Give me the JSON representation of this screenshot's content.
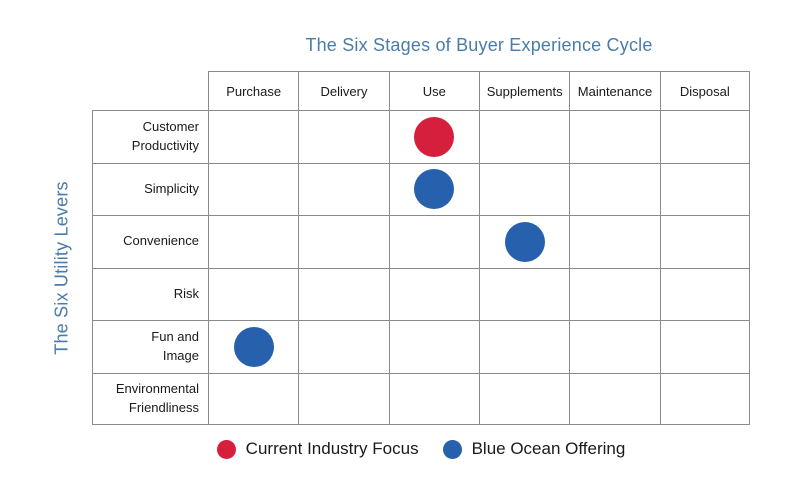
{
  "title": "The Six Stages of Buyer Experience Cycle",
  "y_axis_label": "The Six Utility Levers",
  "colors": {
    "axis_blue": "#4a7ca9",
    "current_industry": "#d51f3c",
    "blue_ocean": "#2760ad",
    "grid_line": "#8a8a8a",
    "text": "#1a1a1a"
  },
  "matrix": {
    "columns": [
      "Purchase",
      "Delivery",
      "Use",
      "Supplements",
      "Maintenance",
      "Disposal"
    ],
    "rows": [
      "Customer\nProductivity",
      "Simplicity",
      "Convenience",
      "Risk",
      "Fun and\nImage",
      "Environmental\nFriendliness"
    ],
    "marks": [
      {
        "row_index": 0,
        "col_index": 2,
        "row": "Customer Productivity",
        "column": "Use",
        "type": "current_industry"
      },
      {
        "row_index": 1,
        "col_index": 2,
        "row": "Simplicity",
        "column": "Use",
        "type": "blue_ocean"
      },
      {
        "row_index": 2,
        "col_index": 3,
        "row": "Convenience",
        "column": "Supplements",
        "type": "blue_ocean"
      },
      {
        "row_index": 4,
        "col_index": 0,
        "row": "Fun and Image",
        "column": "Purchase",
        "type": "blue_ocean"
      }
    ]
  },
  "legend": [
    {
      "label": "Current Industry Focus",
      "type": "current_industry"
    },
    {
      "label": "Blue Ocean Offering",
      "type": "blue_ocean"
    }
  ],
  "chart_data": {
    "type": "scatter",
    "x_categories": [
      "Purchase",
      "Delivery",
      "Use",
      "Supplements",
      "Maintenance",
      "Disposal"
    ],
    "y_categories": [
      "Customer Productivity",
      "Simplicity",
      "Convenience",
      "Risk",
      "Fun and Image",
      "Environmental Friendliness"
    ],
    "series": [
      {
        "name": "Current Industry Focus",
        "color": "#d51f3c",
        "points": [
          {
            "x": "Use",
            "y": "Customer Productivity"
          }
        ]
      },
      {
        "name": "Blue Ocean Offering",
        "color": "#2760ad",
        "points": [
          {
            "x": "Use",
            "y": "Simplicity"
          },
          {
            "x": "Supplements",
            "y": "Convenience"
          },
          {
            "x": "Purchase",
            "y": "Fun and Image"
          }
        ]
      }
    ],
    "title": "The Six Stages of Buyer Experience Cycle",
    "xlabel": "The Six Stages of Buyer Experience Cycle",
    "ylabel": "The Six Utility Levers",
    "grid": true,
    "legend_position": "bottom"
  }
}
